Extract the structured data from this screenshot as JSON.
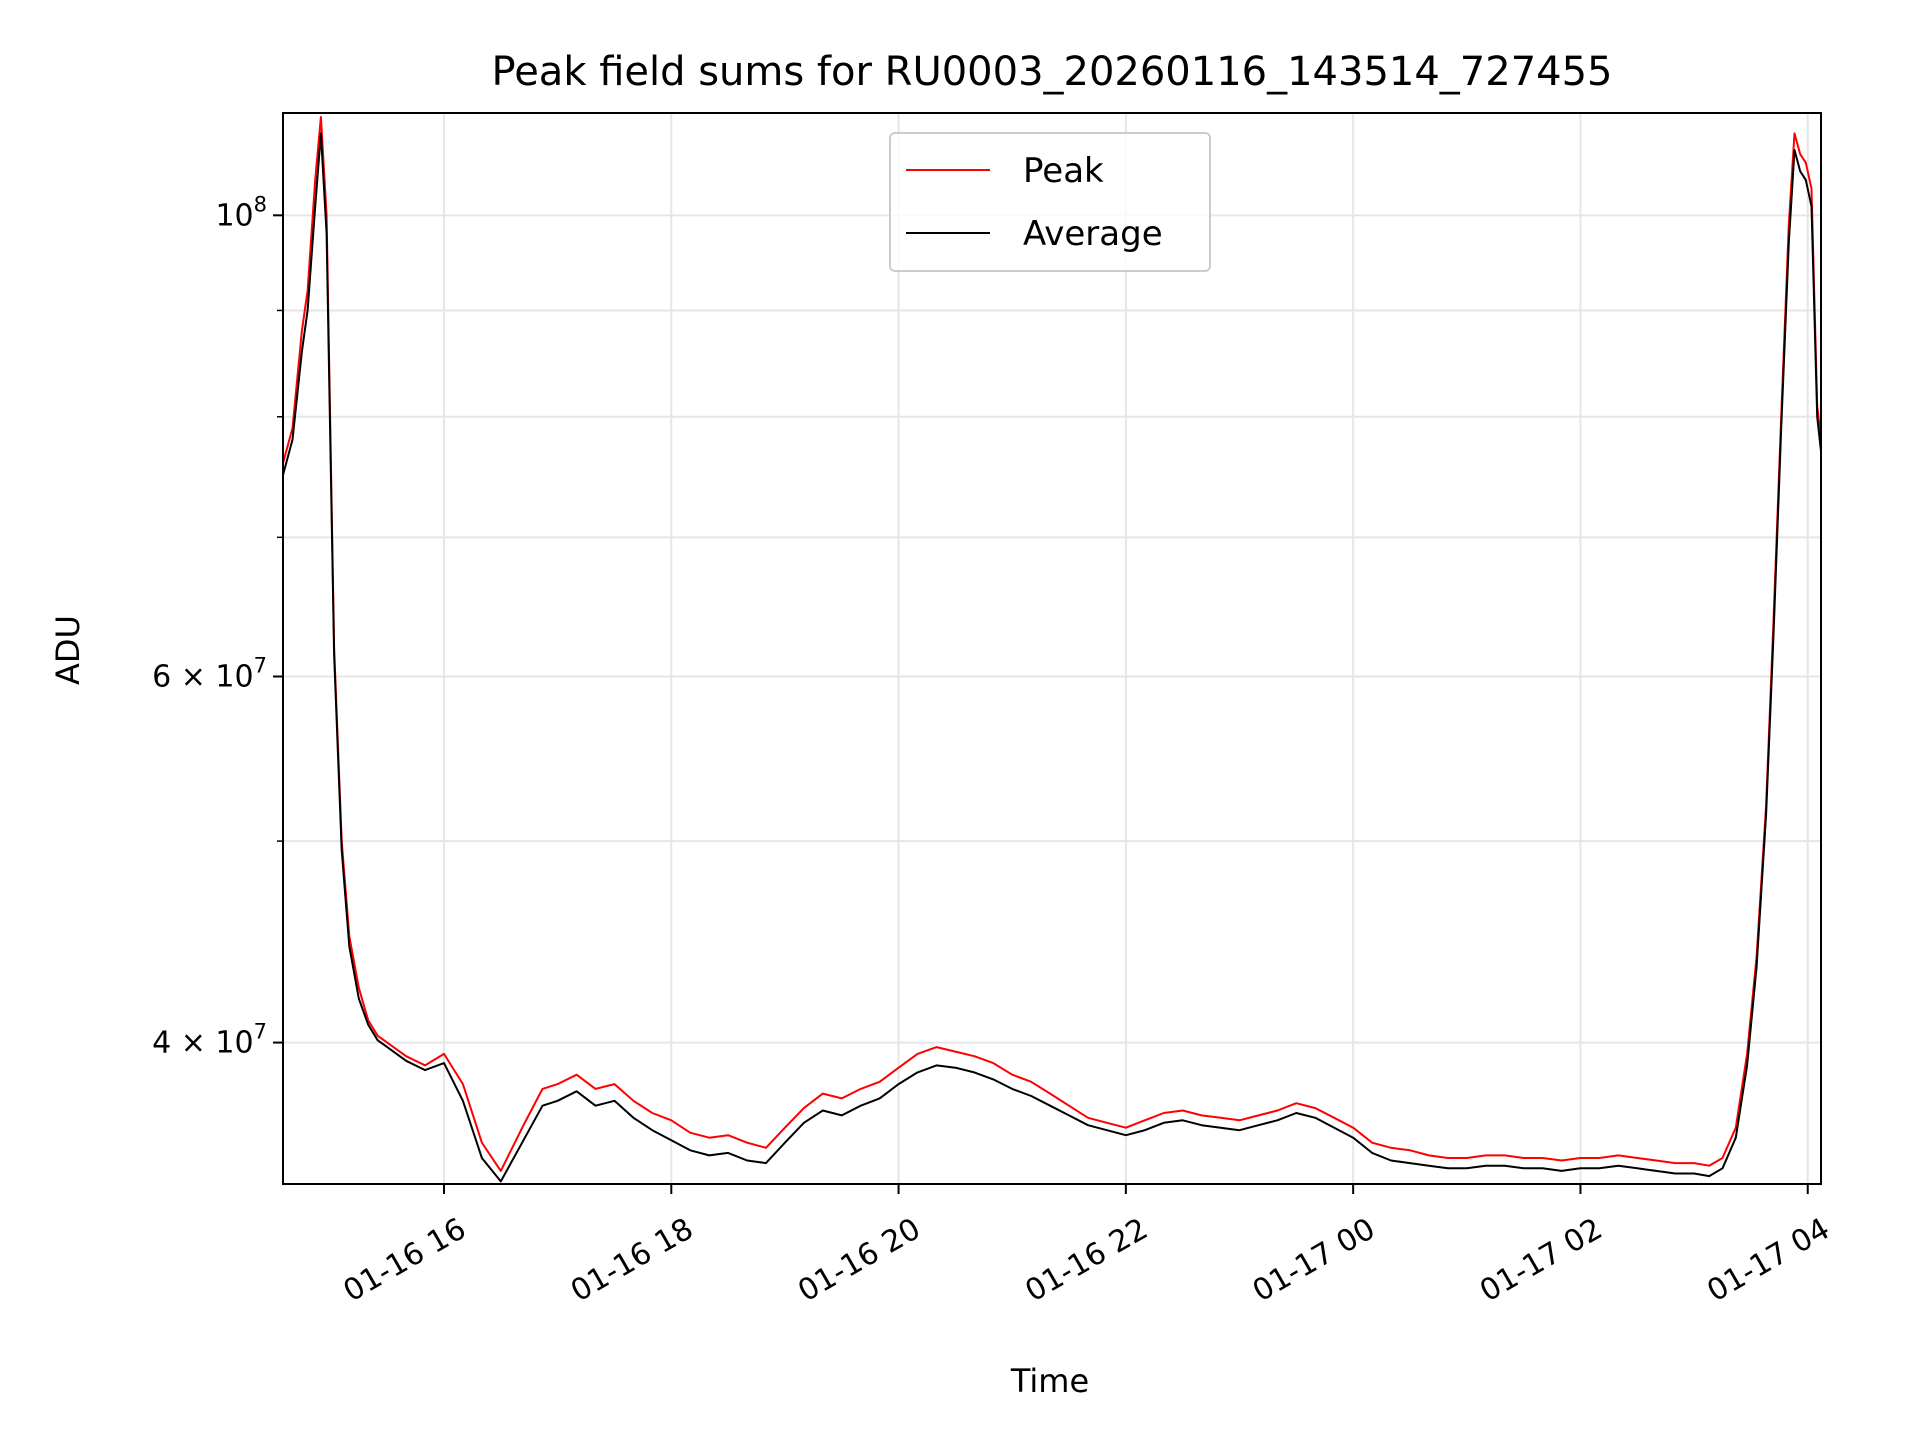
{
  "chart_data": {
    "type": "line",
    "title": "Peak field sums for RU0003_20260116_143514_727455",
    "xlabel": "Time",
    "ylabel": "ADU",
    "y_scale": "log",
    "ylim": [
      34200000,
      112000000
    ],
    "xlim": [
      "2026-01-16 14:35",
      "2026-01-17 04:07"
    ],
    "grid": true,
    "legend_position": "top-center",
    "x_ticks": [
      {
        "t": "2026-01-16 16:00",
        "label": "01-16 16"
      },
      {
        "t": "2026-01-16 18:00",
        "label": "01-16 18"
      },
      {
        "t": "2026-01-16 20:00",
        "label": "01-16 20"
      },
      {
        "t": "2026-01-16 22:00",
        "label": "01-16 22"
      },
      {
        "t": "2026-01-17 00:00",
        "label": "01-17 00"
      },
      {
        "t": "2026-01-17 02:00",
        "label": "01-17 02"
      },
      {
        "t": "2026-01-17 04:00",
        "label": "01-17 04"
      }
    ],
    "y_ticks": [
      {
        "value": 40000000,
        "mantissa": "4",
        "exponent": "7"
      },
      {
        "value": 60000000,
        "mantissa": "6",
        "exponent": "7"
      },
      {
        "value": 100000000,
        "mantissa": "",
        "exponent": "8"
      }
    ],
    "y_minor_ticks": [
      50000000,
      70000000,
      80000000,
      90000000
    ],
    "series": [
      {
        "name": "Peak",
        "color": "#ff0000",
        "x": [
          "2026-01-16 14:35",
          "2026-01-16 14:40",
          "2026-01-16 14:45",
          "2026-01-16 14:48",
          "2026-01-16 14:52",
          "2026-01-16 14:55",
          "2026-01-16 14:58",
          "2026-01-16 15:02",
          "2026-01-16 15:06",
          "2026-01-16 15:10",
          "2026-01-16 15:15",
          "2026-01-16 15:20",
          "2026-01-16 15:25",
          "2026-01-16 15:30",
          "2026-01-16 15:40",
          "2026-01-16 15:50",
          "2026-01-16 16:00",
          "2026-01-16 16:10",
          "2026-01-16 16:20",
          "2026-01-16 16:30",
          "2026-01-16 16:42",
          "2026-01-16 16:52",
          "2026-01-16 17:00",
          "2026-01-16 17:10",
          "2026-01-16 17:20",
          "2026-01-16 17:30",
          "2026-01-16 17:40",
          "2026-01-16 17:50",
          "2026-01-16 18:00",
          "2026-01-16 18:10",
          "2026-01-16 18:20",
          "2026-01-16 18:30",
          "2026-01-16 18:40",
          "2026-01-16 18:50",
          "2026-01-16 19:00",
          "2026-01-16 19:10",
          "2026-01-16 19:20",
          "2026-01-16 19:30",
          "2026-01-16 19:40",
          "2026-01-16 19:50",
          "2026-01-16 20:00",
          "2026-01-16 20:10",
          "2026-01-16 20:20",
          "2026-01-16 20:30",
          "2026-01-16 20:40",
          "2026-01-16 20:50",
          "2026-01-16 21:00",
          "2026-01-16 21:10",
          "2026-01-16 21:20",
          "2026-01-16 21:30",
          "2026-01-16 21:40",
          "2026-01-16 21:50",
          "2026-01-16 22:00",
          "2026-01-16 22:10",
          "2026-01-16 22:20",
          "2026-01-16 22:30",
          "2026-01-16 22:40",
          "2026-01-16 22:50",
          "2026-01-16 23:00",
          "2026-01-16 23:10",
          "2026-01-16 23:20",
          "2026-01-16 23:30",
          "2026-01-16 23:40",
          "2026-01-16 23:50",
          "2026-01-17 00:00",
          "2026-01-17 00:10",
          "2026-01-17 00:20",
          "2026-01-17 00:30",
          "2026-01-17 00:40",
          "2026-01-17 00:50",
          "2026-01-17 01:00",
          "2026-01-17 01:10",
          "2026-01-17 01:20",
          "2026-01-17 01:30",
          "2026-01-17 01:40",
          "2026-01-17 01:50",
          "2026-01-17 02:00",
          "2026-01-17 02:10",
          "2026-01-17 02:20",
          "2026-01-17 02:30",
          "2026-01-17 02:40",
          "2026-01-17 02:50",
          "2026-01-17 03:00",
          "2026-01-17 03:08",
          "2026-01-17 03:15",
          "2026-01-17 03:22",
          "2026-01-17 03:28",
          "2026-01-17 03:33",
          "2026-01-17 03:38",
          "2026-01-17 03:42",
          "2026-01-17 03:46",
          "2026-01-17 03:50",
          "2026-01-17 03:53",
          "2026-01-17 03:56",
          "2026-01-17 03:59",
          "2026-01-17 04:02",
          "2026-01-17 04:05",
          "2026-01-17 04:07"
        ],
        "values": [
          76000000,
          79000000,
          88000000,
          92000000,
          104000000,
          111500000,
          100000000,
          62000000,
          50000000,
          45000000,
          42500000,
          41000000,
          40300000,
          40000000,
          39400000,
          39000000,
          39500000,
          38200000,
          35800000,
          34700000,
          36500000,
          38000000,
          38200000,
          38600000,
          38000000,
          38200000,
          37500000,
          37000000,
          36700000,
          36200000,
          36000000,
          36100000,
          35800000,
          35600000,
          36400000,
          37200000,
          37800000,
          37600000,
          38000000,
          38300000,
          38900000,
          39500000,
          39800000,
          39600000,
          39400000,
          39100000,
          38600000,
          38300000,
          37800000,
          37300000,
          36800000,
          36600000,
          36400000,
          36700000,
          37000000,
          37100000,
          36900000,
          36800000,
          36700000,
          36900000,
          37100000,
          37400000,
          37200000,
          36800000,
          36400000,
          35800000,
          35600000,
          35500000,
          35300000,
          35200000,
          35200000,
          35300000,
          35300000,
          35200000,
          35200000,
          35100000,
          35200000,
          35200000,
          35300000,
          35200000,
          35100000,
          35000000,
          35000000,
          34900000,
          35200000,
          36400000,
          39500000,
          44000000,
          52000000,
          64000000,
          80000000,
          99000000,
          109500000,
          107000000,
          106000000,
          103000000,
          81000000,
          78000000
        ]
      },
      {
        "name": "Average",
        "color": "#000000",
        "x": [
          "2026-01-16 14:35",
          "2026-01-16 14:40",
          "2026-01-16 14:45",
          "2026-01-16 14:48",
          "2026-01-16 14:52",
          "2026-01-16 14:55",
          "2026-01-16 14:58",
          "2026-01-16 15:02",
          "2026-01-16 15:06",
          "2026-01-16 15:10",
          "2026-01-16 15:15",
          "2026-01-16 15:20",
          "2026-01-16 15:25",
          "2026-01-16 15:30",
          "2026-01-16 15:40",
          "2026-01-16 15:50",
          "2026-01-16 16:00",
          "2026-01-16 16:10",
          "2026-01-16 16:20",
          "2026-01-16 16:30",
          "2026-01-16 16:42",
          "2026-01-16 16:52",
          "2026-01-16 17:00",
          "2026-01-16 17:10",
          "2026-01-16 17:20",
          "2026-01-16 17:30",
          "2026-01-16 17:40",
          "2026-01-16 17:50",
          "2026-01-16 18:00",
          "2026-01-16 18:10",
          "2026-01-16 18:20",
          "2026-01-16 18:30",
          "2026-01-16 18:40",
          "2026-01-16 18:50",
          "2026-01-16 19:00",
          "2026-01-16 19:10",
          "2026-01-16 19:20",
          "2026-01-16 19:30",
          "2026-01-16 19:40",
          "2026-01-16 19:50",
          "2026-01-16 20:00",
          "2026-01-16 20:10",
          "2026-01-16 20:20",
          "2026-01-16 20:30",
          "2026-01-16 20:40",
          "2026-01-16 20:50",
          "2026-01-16 21:00",
          "2026-01-16 21:10",
          "2026-01-16 21:20",
          "2026-01-16 21:30",
          "2026-01-16 21:40",
          "2026-01-16 21:50",
          "2026-01-16 22:00",
          "2026-01-16 22:10",
          "2026-01-16 22:20",
          "2026-01-16 22:30",
          "2026-01-16 22:40",
          "2026-01-16 22:50",
          "2026-01-16 23:00",
          "2026-01-16 23:10",
          "2026-01-16 23:20",
          "2026-01-16 23:30",
          "2026-01-16 23:40",
          "2026-01-16 23:50",
          "2026-01-17 00:00",
          "2026-01-17 00:10",
          "2026-01-17 00:20",
          "2026-01-17 00:30",
          "2026-01-17 00:40",
          "2026-01-17 00:50",
          "2026-01-17 01:00",
          "2026-01-17 01:10",
          "2026-01-17 01:20",
          "2026-01-17 01:30",
          "2026-01-17 01:40",
          "2026-01-17 01:50",
          "2026-01-17 02:00",
          "2026-01-17 02:10",
          "2026-01-17 02:20",
          "2026-01-17 02:30",
          "2026-01-17 02:40",
          "2026-01-17 02:50",
          "2026-01-17 03:00",
          "2026-01-17 03:08",
          "2026-01-17 03:15",
          "2026-01-17 03:22",
          "2026-01-17 03:28",
          "2026-01-17 03:33",
          "2026-01-17 03:38",
          "2026-01-17 03:42",
          "2026-01-17 03:46",
          "2026-01-17 03:50",
          "2026-01-17 03:53",
          "2026-01-17 03:56",
          "2026-01-17 03:59",
          "2026-01-17 04:02",
          "2026-01-17 04:05",
          "2026-01-17 04:07"
        ],
        "values": [
          75000000,
          78000000,
          86000000,
          90000000,
          101000000,
          109500000,
          98000000,
          61500000,
          49500000,
          44500000,
          42000000,
          40800000,
          40100000,
          39800000,
          39200000,
          38800000,
          39100000,
          37500000,
          35200000,
          34300000,
          35900000,
          37300000,
          37500000,
          37900000,
          37300000,
          37500000,
          36800000,
          36300000,
          35900000,
          35500000,
          35300000,
          35400000,
          35100000,
          35000000,
          35800000,
          36600000,
          37100000,
          36900000,
          37300000,
          37600000,
          38200000,
          38700000,
          39000000,
          38900000,
          38700000,
          38400000,
          38000000,
          37700000,
          37300000,
          36900000,
          36500000,
          36300000,
          36100000,
          36300000,
          36600000,
          36700000,
          36500000,
          36400000,
          36300000,
          36500000,
          36700000,
          37000000,
          36800000,
          36400000,
          36000000,
          35400000,
          35100000,
          35000000,
          34900000,
          34800000,
          34800000,
          34900000,
          34900000,
          34800000,
          34800000,
          34700000,
          34800000,
          34800000,
          34900000,
          34800000,
          34700000,
          34600000,
          34600000,
          34500000,
          34800000,
          36000000,
          39000000,
          43500000,
          51500000,
          63000000,
          79000000,
          97000000,
          107500000,
          105000000,
          104000000,
          101000000,
          80000000,
          77000000
        ]
      }
    ]
  }
}
